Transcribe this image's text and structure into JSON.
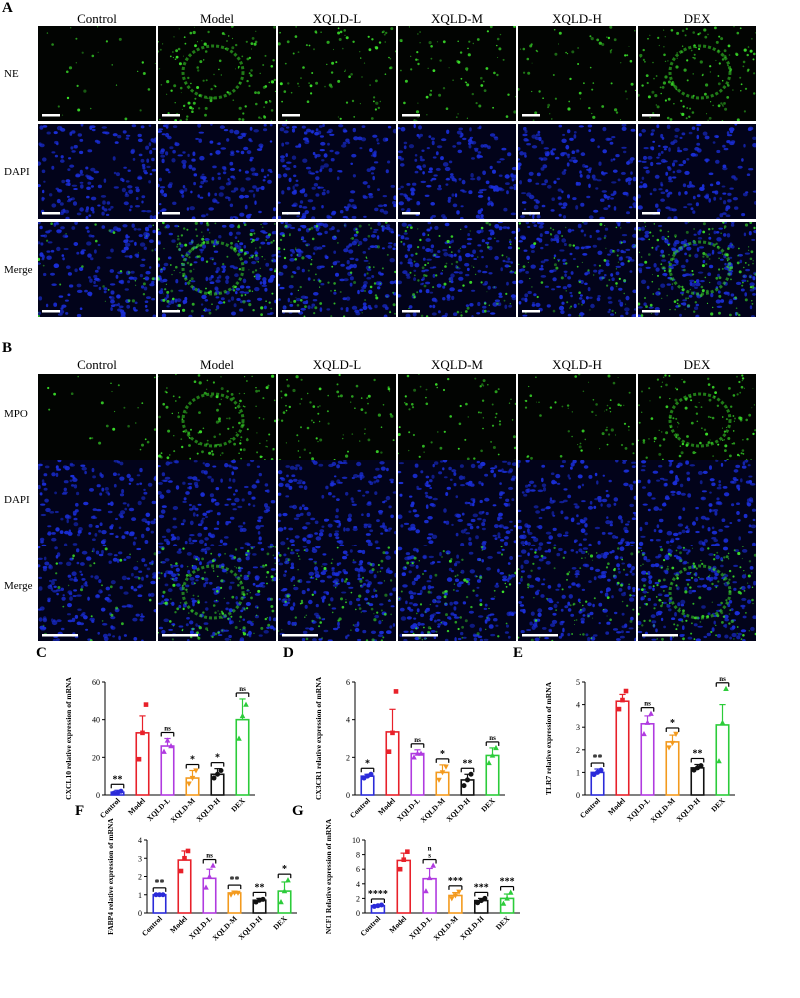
{
  "panel_a": {
    "letter": "A",
    "columns": [
      "Control",
      "Model",
      "XQLD-L",
      "XQLD-M",
      "XQLD-H",
      "DEX"
    ],
    "rows": [
      "NE",
      "DAPI",
      "Merge"
    ]
  },
  "panel_b": {
    "letter": "B",
    "columns": [
      "Control",
      "Model",
      "XQLD-L",
      "XQLD-M",
      "XQLD-H",
      "DEX"
    ],
    "rows": [
      "MPO",
      "DAPI",
      "Merge"
    ]
  },
  "colors": {
    "control": "#2b2bd9",
    "model": "#e8212a",
    "xqld_l": "#b03be0",
    "xqld_m": "#f39a1e",
    "xqld_h": "#111111",
    "dex": "#2ccc3a",
    "fluor_green": "#3adf2a",
    "fluor_blue": "#1a2ed8"
  },
  "chart_data": [
    {
      "type": "bar",
      "panel": "C",
      "ylabel": "CXCL10 relative expression of mRNA",
      "categories": [
        "Control",
        "Model",
        "XQLD-L",
        "XQLD-M",
        "XQLD-H",
        "DEX"
      ],
      "values": [
        1.5,
        33,
        26,
        9,
        11,
        40
      ],
      "errors": [
        1,
        9,
        4,
        4,
        3,
        11
      ],
      "points": [
        [
          1,
          1,
          2
        ],
        [
          19,
          33,
          48
        ],
        [
          23,
          29,
          26
        ],
        [
          6,
          9,
          13
        ],
        [
          9,
          11,
          13
        ],
        [
          30,
          42,
          48
        ]
      ],
      "yticks": [
        0,
        20,
        40,
        60
      ],
      "ylim": [
        0,
        60
      ],
      "significance": [
        "**",
        "",
        "ns",
        "*",
        "*",
        ""
      ],
      "dex_label": "ns"
    },
    {
      "type": "bar",
      "panel": "D",
      "ylabel": "CX3CR1 relative expression of mRNA",
      "categories": [
        "Control",
        "Model",
        "XQLD-L",
        "XQLD-M",
        "XQLD-H",
        "DEX"
      ],
      "values": [
        1.0,
        3.35,
        2.2,
        1.2,
        0.8,
        2.1
      ],
      "errors": [
        0.1,
        1.2,
        0.2,
        0.4,
        0.3,
        0.4
      ],
      "points": [
        [
          0.9,
          1.0,
          1.1
        ],
        [
          2.3,
          3.3,
          5.5
        ],
        [
          2.0,
          2.2,
          2.2
        ],
        [
          0.8,
          1.2,
          1.5
        ],
        [
          0.5,
          0.8,
          1.1
        ],
        [
          1.7,
          2.1,
          2.5
        ]
      ],
      "yticks": [
        0,
        2,
        4,
        6
      ],
      "ylim": [
        0,
        6
      ],
      "significance": [
        "*",
        "",
        "ns",
        "*",
        "**",
        ""
      ],
      "dex_label": "ns"
    },
    {
      "type": "bar",
      "panel": "E",
      "ylabel": "TLR7 relative expression of mRNA",
      "categories": [
        "Control",
        "Model",
        "XQLD-L",
        "XQLD-M",
        "XQLD-H",
        "DEX"
      ],
      "values": [
        1.0,
        4.15,
        3.15,
        2.35,
        1.2,
        3.1
      ],
      "errors": [
        0.15,
        0.3,
        0.35,
        0.3,
        0.15,
        0.9
      ],
      "points": [
        [
          0.9,
          1.0,
          1.1
        ],
        [
          3.8,
          4.2,
          4.6
        ],
        [
          2.7,
          3.2,
          3.6
        ],
        [
          2.1,
          2.3,
          2.7
        ],
        [
          1.1,
          1.2,
          1.3
        ],
        [
          1.5,
          3.2,
          4.7
        ]
      ],
      "yticks": [
        0,
        1,
        2,
        3,
        4,
        5
      ],
      "ylim": [
        0,
        5
      ],
      "significance": [
        "**",
        "",
        "ns",
        "*",
        "**",
        ""
      ],
      "dex_label": "ns"
    },
    {
      "type": "bar",
      "panel": "F",
      "ylabel": "FABP4 relative expression of mRNA",
      "categories": [
        "Control",
        "Model",
        "XQLD-L",
        "XQLD-M",
        "XQLD-H",
        "DEX"
      ],
      "values": [
        1.0,
        2.9,
        1.9,
        1.1,
        0.7,
        1.2
      ],
      "errors": [
        0.05,
        0.5,
        0.5,
        0.1,
        0.1,
        0.5
      ],
      "points": [
        [
          1.0,
          1.0,
          1.0
        ],
        [
          2.3,
          3.0,
          3.4
        ],
        [
          1.4,
          2.0,
          2.6
        ],
        [
          1.0,
          1.1,
          1.1
        ],
        [
          0.6,
          0.7,
          0.75
        ],
        [
          0.6,
          1.2,
          1.8
        ]
      ],
      "yticks": [
        0,
        1,
        2,
        3,
        4
      ],
      "ylim": [
        0,
        4
      ],
      "significance": [
        "**",
        "",
        "ns",
        "**",
        "**",
        "*"
      ]
    },
    {
      "type": "bar",
      "panel": "G",
      "ylabel": "NCF1 Relative expression of mRNA",
      "categories": [
        "Control",
        "Model",
        "XQLD-L",
        "XQLD-M",
        "XQLD-H",
        "DEX"
      ],
      "values": [
        1.0,
        7.2,
        4.7,
        2.4,
        1.7,
        2.0
      ],
      "errors": [
        0.1,
        1.0,
        1.4,
        0.4,
        0.3,
        0.6
      ],
      "points": [
        [
          0.9,
          1.0,
          1.1
        ],
        [
          6.0,
          7.3,
          8.4
        ],
        [
          3.0,
          4.8,
          6.5
        ],
        [
          2.0,
          2.4,
          2.9
        ],
        [
          1.4,
          1.7,
          2.0
        ],
        [
          1.3,
          2.0,
          2.8
        ]
      ],
      "yticks": [
        0,
        2,
        4,
        6,
        8,
        10
      ],
      "ylim": [
        0,
        10
      ],
      "significance": [
        "****",
        "",
        "n\ns",
        "***",
        "***",
        "***"
      ]
    }
  ]
}
